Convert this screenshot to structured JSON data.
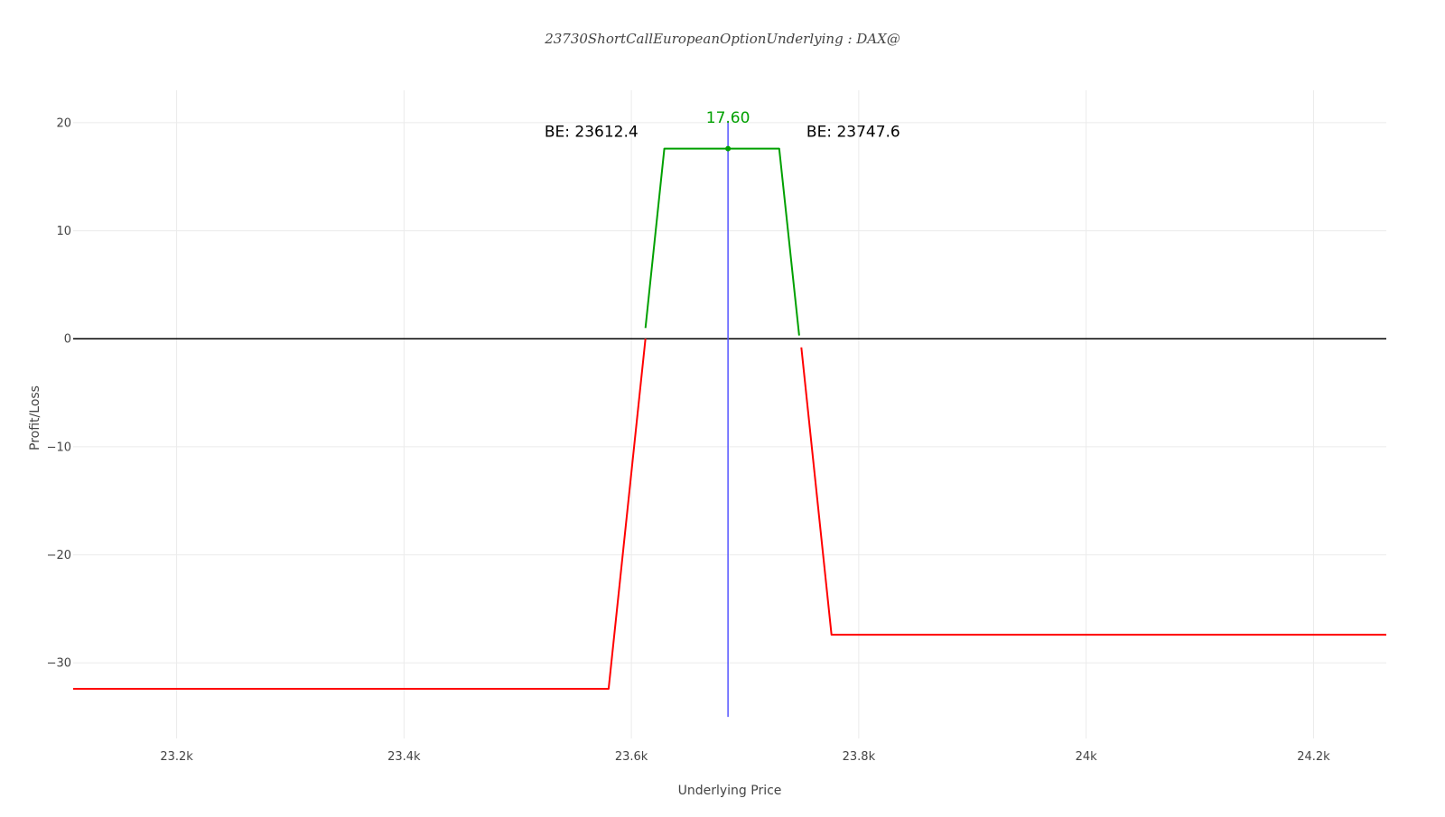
{
  "chart_data": {
    "type": "line",
    "title": "23730ShortCallEuropeanOptionUnderlying : DAX@",
    "xlabel": "Underlying Price",
    "ylabel": "Profit/Loss",
    "xlim": [
      23109,
      24264
    ],
    "ylim": [
      -37,
      23
    ],
    "x_ticks": [
      {
        "value": 23200,
        "label": "23.2k"
      },
      {
        "value": 23400,
        "label": "23.4k"
      },
      {
        "value": 23600,
        "label": "23.6k"
      },
      {
        "value": 23800,
        "label": "23.8k"
      },
      {
        "value": 24000,
        "label": "24k"
      },
      {
        "value": 24200,
        "label": "24.2k"
      }
    ],
    "y_ticks": [
      {
        "value": 20,
        "label": "20"
      },
      {
        "value": 10,
        "label": "10"
      },
      {
        "value": 0,
        "label": "0"
      },
      {
        "value": -10,
        "label": "−10"
      },
      {
        "value": -20,
        "label": "−20"
      },
      {
        "value": -30,
        "label": "−30"
      }
    ],
    "grid": true,
    "series": [
      {
        "color": "#ff0000",
        "x": [
          23109,
          23580,
          23612.4
        ],
        "y": [
          -32.4,
          -32.4,
          0
        ]
      },
      {
        "color": "#00a000",
        "x": [
          23612.4,
          23629,
          23730,
          23747.6
        ],
        "y": [
          1.0,
          17.6,
          17.6,
          0.3
        ]
      },
      {
        "color": "#ff0000",
        "x": [
          23749.5,
          23776,
          24264
        ],
        "y": [
          -0.8,
          -27.4,
          -27.4
        ]
      }
    ],
    "zero_line": {
      "y": 0,
      "color": "#000000"
    },
    "current_price_line": {
      "x": 23685,
      "y_range": [
        -35,
        20
      ],
      "color": "#5555ff"
    },
    "peak_marker": {
      "x": 23685,
      "y": 17.6,
      "color": "#00a000"
    },
    "annotations": [
      {
        "text": "BE: 23612.4",
        "x": 23612.4,
        "y": 18.7,
        "anchor": "end",
        "color": "#000000",
        "kind": "be"
      },
      {
        "text": "BE: 23747.6",
        "x": 23747.6,
        "y": 18.7,
        "anchor": "start",
        "color": "#000000",
        "kind": "be"
      },
      {
        "text": "17.60",
        "x": 23685,
        "y": 20.0,
        "anchor": "middle",
        "color": "#00a000",
        "kind": "peak"
      }
    ]
  }
}
